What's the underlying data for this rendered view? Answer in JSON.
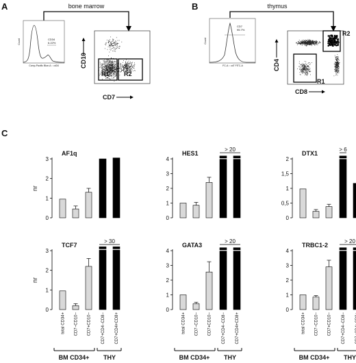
{
  "panel_a": {
    "letter": "A",
    "tissue": "bone marrow",
    "histogram_marker": "CD34",
    "histogram_percent": "6.22%",
    "histogram_xlabel": "Comp-Pacific Blue-A :: cd34",
    "histogram_ylabel": "Count",
    "scatter_xlabel": "CD7",
    "scatter_ylabel": "CD10",
    "gate_1": "R1",
    "gate_2": "R2"
  },
  "panel_b": {
    "letter": "B",
    "tissue": "thymus",
    "histogram_marker": "CD7",
    "histogram_percent": "95.7%",
    "histogram_xlabel": "FC-A :: cd7 FITC-A",
    "histogram_ylabel": "Count",
    "scatter_xlabel": "CD8",
    "scatter_ylabel": "CD4",
    "gate_1": "R1",
    "gate_2": "R2"
  },
  "panel_c": {
    "letter": "C",
    "ylabel": "nr",
    "group_1": "BM CD34+",
    "group_2": "THY"
  },
  "chart_data": [
    {
      "type": "bar",
      "title": "AF1q",
      "ylabel": "nr",
      "ylim": [
        0,
        3
      ],
      "yticks": [
        "0",
        "1",
        "2",
        "3"
      ],
      "categories": [
        "total CD34+",
        "CD7−CD10−",
        "CD7+CD10−",
        "CD7+CD4−CD8−",
        "CD7+CD4+CD8+"
      ],
      "values": [
        0.95,
        0.45,
        1.3,
        3.0,
        3.05
      ],
      "errors": [
        0,
        0.15,
        0.2,
        0,
        0
      ],
      "colors": [
        "#d9d9d9",
        "#d9d9d9",
        "#d9d9d9",
        "#000000",
        "#000000"
      ],
      "truncated": [
        false,
        false,
        false,
        false,
        false
      ],
      "overflow_label": ""
    },
    {
      "type": "bar",
      "title": "HES1",
      "ylabel": "",
      "ylim": [
        0,
        4
      ],
      "yticks": [
        "0",
        "1",
        "2",
        "3",
        "4"
      ],
      "categories": [
        "total CD34+",
        "CD7−CD10−",
        "CD7+CD10−",
        "CD7+CD4−CD8−",
        "CD7+CD4+CD8+"
      ],
      "values": [
        1.0,
        0.85,
        2.4,
        4.2,
        4.2
      ],
      "errors": [
        0,
        0.2,
        0.35,
        0,
        0
      ],
      "colors": [
        "#d9d9d9",
        "#d9d9d9",
        "#d9d9d9",
        "#000000",
        "#000000"
      ],
      "truncated": [
        false,
        false,
        false,
        true,
        true
      ],
      "overflow_label": "> 20"
    },
    {
      "type": "bar",
      "title": "DTX1",
      "ylabel": "",
      "ylim": [
        0,
        2
      ],
      "yticks": [
        "0",
        "0,5",
        "1",
        "1,5",
        "2"
      ],
      "categories": [
        "total CD34+",
        "CD7−CD10−",
        "CD7+CD10−",
        "CD7+CD4−CD8−",
        "CD7+CD4+CD8+"
      ],
      "values": [
        0.98,
        0.22,
        0.38,
        2.1,
        1.17
      ],
      "errors": [
        0,
        0.06,
        0.08,
        0,
        0
      ],
      "colors": [
        "#d9d9d9",
        "#d9d9d9",
        "#d9d9d9",
        "#000000",
        "#000000"
      ],
      "truncated": [
        false,
        false,
        false,
        true,
        false
      ],
      "overflow_label": "> 6"
    },
    {
      "type": "bar",
      "title": "TCF7",
      "ylabel": "nr",
      "ylim": [
        0,
        3
      ],
      "yticks": [
        "0",
        "1",
        "2",
        "3"
      ],
      "categories": [
        "total CD34+",
        "CD7−CD10−",
        "CD7+CD10−",
        "CD7+CD4−CD8−",
        "CD7+CD4+CD8+"
      ],
      "values": [
        0.95,
        0.2,
        2.2,
        3.2,
        3.2
      ],
      "errors": [
        0,
        0.1,
        0.4,
        0,
        0
      ],
      "colors": [
        "#d9d9d9",
        "#d9d9d9",
        "#d9d9d9",
        "#000000",
        "#000000"
      ],
      "truncated": [
        false,
        false,
        false,
        true,
        true
      ],
      "overflow_label": "> 30"
    },
    {
      "type": "bar",
      "title": "GATA3",
      "ylabel": "",
      "ylim": [
        0,
        4
      ],
      "yticks": [
        "0",
        "1",
        "2",
        "3",
        "4"
      ],
      "categories": [
        "total CD34+",
        "CD7−CD10−",
        "CD7+CD10−",
        "CD7+CD4−CD8−",
        "CD7+CD4+CD8+"
      ],
      "values": [
        1.0,
        0.4,
        2.55,
        4.2,
        4.2
      ],
      "errors": [
        0,
        0.1,
        0.7,
        0,
        0
      ],
      "colors": [
        "#d9d9d9",
        "#d9d9d9",
        "#d9d9d9",
        "#000000",
        "#000000"
      ],
      "truncated": [
        false,
        false,
        false,
        true,
        true
      ],
      "overflow_label": "> 20"
    },
    {
      "type": "bar",
      "title": "TRBC1-2",
      "ylabel": "",
      "ylim": [
        0,
        4
      ],
      "yticks": [
        "0",
        "1",
        "2",
        "3",
        "4"
      ],
      "categories": [
        "total CD34+",
        "CD7−CD10−",
        "CD7+CD10−",
        "CD7+CD4−CD8−",
        "CD7+CD4+CD8+"
      ],
      "values": [
        1.0,
        0.85,
        2.9,
        4.2,
        4.2
      ],
      "errors": [
        0,
        0.1,
        0.45,
        0,
        0
      ],
      "colors": [
        "#d9d9d9",
        "#d9d9d9",
        "#d9d9d9",
        "#000000",
        "#000000"
      ],
      "truncated": [
        false,
        false,
        false,
        true,
        true
      ],
      "overflow_label": "> 20"
    }
  ]
}
